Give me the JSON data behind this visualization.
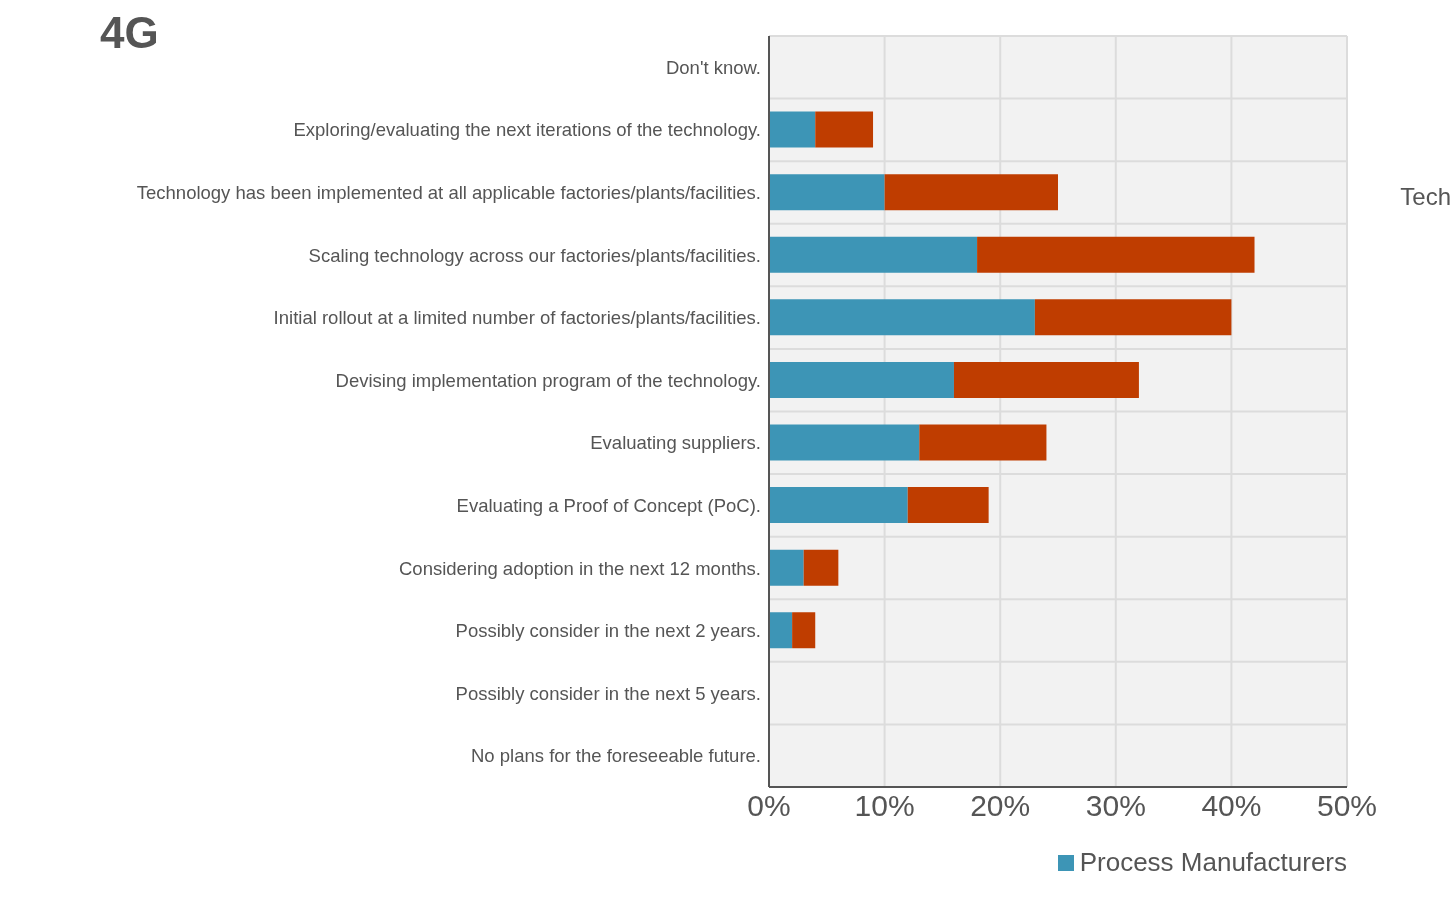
{
  "chart_data": {
    "type": "bar",
    "title": "4G",
    "orientation": "horizontal",
    "stacked": true,
    "categories": [
      "Don't know.",
      "Exploring/evaluating the next iterations of the technology.",
      "Technology has been implemented at all applicable factories/plants/facilities.",
      "Scaling technology across our factories/plants/facilities.",
      "Initial rollout at a limited number of factories/plants/facilities.",
      "Devising implementation program of the technology.",
      "Evaluating suppliers.",
      "Evaluating a Proof of Concept (PoC).",
      "Considering adoption in the next 12 months.",
      "Possibly consider in the next 2 years.",
      "Possibly consider in the next 5 years.",
      "No plans for the foreseeable future."
    ],
    "series": [
      {
        "name": "Process Manufacturers",
        "color": "#3d95b6",
        "values": [
          0,
          4,
          10,
          18,
          23,
          16,
          13,
          12,
          3,
          2,
          0,
          0
        ]
      },
      {
        "color": "#bf3d00",
        "values": [
          0,
          5,
          15,
          24,
          17,
          16,
          11,
          7,
          3,
          2,
          0,
          0
        ]
      }
    ],
    "xlim": [
      0,
      50
    ],
    "xticks": [
      {
        "value": 0,
        "label": "0%"
      },
      {
        "value": 10,
        "label": "10%"
      },
      {
        "value": 20,
        "label": "20%"
      },
      {
        "value": 30,
        "label": "30%"
      },
      {
        "value": 40,
        "label": "40%"
      },
      {
        "value": 50,
        "label": "50%"
      }
    ],
    "grid": true,
    "legend": "bottom right",
    "annotations": [
      "Tech"
    ]
  }
}
